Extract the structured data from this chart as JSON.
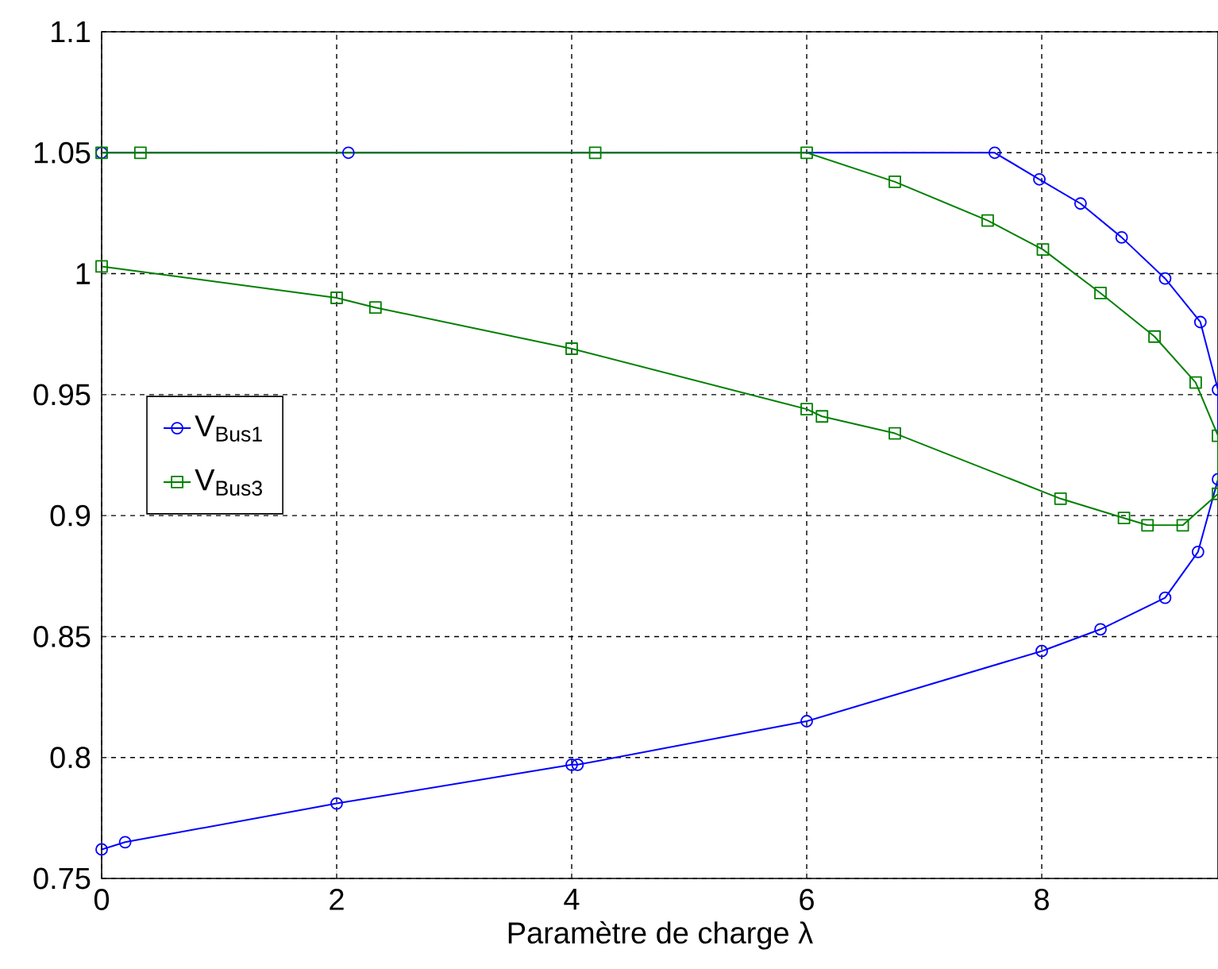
{
  "chart_data": {
    "type": "line",
    "xlabel": "Paramètre de charge  λ",
    "xlim": [
      0,
      9.5
    ],
    "xticks": [
      0,
      2,
      4,
      6,
      8
    ],
    "ylim": [
      0.75,
      1.1
    ],
    "yticks": [
      0.75,
      0.8,
      0.85,
      0.9,
      0.95,
      1,
      1.05,
      1.1
    ],
    "grid": true,
    "legend": "left",
    "line_style": "solid",
    "series": [
      {
        "name": "V$_{Bus1}$",
        "color": "#0000ff",
        "marker": "circle",
        "x": [
          0,
          0.2,
          2,
          4,
          4.05,
          6,
          8,
          8.5,
          9.05,
          9.33,
          9.5,
          9.5,
          9.35,
          9.05,
          8.68,
          8.33,
          7.98,
          7.6,
          2.1,
          0
        ],
        "values": [
          0.762,
          0.765,
          0.781,
          0.797,
          0.797,
          0.815,
          0.844,
          0.853,
          0.866,
          0.885,
          0.915,
          0.952,
          0.98,
          0.998,
          1.015,
          1.029,
          1.039,
          1.05,
          1.05,
          1.05
        ]
      },
      {
        "name": "V$_{Bus3}$",
        "color": "#008000",
        "marker": "square",
        "x": [
          0,
          2,
          2.33,
          4,
          6,
          6.13,
          6.75,
          8.16,
          8.7,
          8.9,
          9.2,
          9.5,
          9.5,
          9.31,
          8.96,
          8.5,
          8.01,
          7.54,
          6.75,
          6,
          4.2,
          0.33,
          0
        ],
        "values": [
          1.003,
          0.99,
          0.986,
          0.969,
          0.944,
          0.941,
          0.934,
          0.907,
          0.899,
          0.896,
          0.896,
          0.909,
          0.933,
          0.955,
          0.974,
          0.992,
          1.01,
          1.022,
          1.038,
          1.05,
          1.05,
          1.05,
          1.05
        ]
      }
    ]
  }
}
